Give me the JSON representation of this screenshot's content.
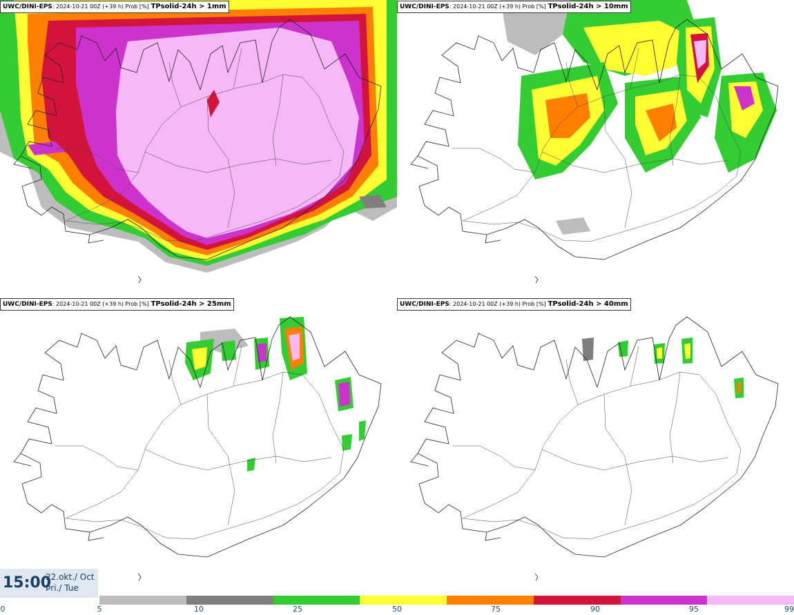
{
  "panels": [
    {
      "model": "UWC/DINI-EPS",
      "meta": ": 2024-10-21 00Z (+39 h) Prob [%]",
      "variable": "TPsolid-24h > 1mm"
    },
    {
      "model": "UWC/DINI-EPS",
      "meta": ": 2024-10-21 00Z (+39 h) Prob [%]",
      "variable": "TPsolid-24h > 10mm"
    },
    {
      "model": "UWC/DINI-EPS",
      "meta": ": 2024-10-21 00Z (+39 h) Prob [%]",
      "variable": "TPsolid-24h > 25mm"
    },
    {
      "model": "UWC/DINI-EPS",
      "meta": ": 2024-10-21 00Z (+39 h) Prob [%]",
      "variable": "TPsolid-24h > 40mm"
    }
  ],
  "valid_time": {
    "time": "15:00",
    "date": "22.okt./ Oct",
    "weekday": "Þri./ Tue"
  },
  "colorbar": {
    "ticks": [
      "0",
      "5",
      "10",
      "25",
      "50",
      "75",
      "90",
      "95",
      "99"
    ],
    "colors": [
      "#bcbcbc",
      "#7f7f7f",
      "#33cc33",
      "#ffff33",
      "#ff7f00",
      "#d2143c",
      "#cc33cc",
      "#f7b8f7"
    ]
  }
}
